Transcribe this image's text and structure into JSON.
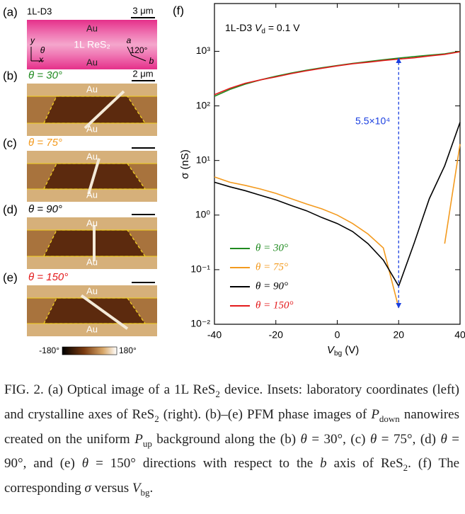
{
  "panels": [
    {
      "label": "(a)",
      "name": "1L-D3",
      "scale": "3 μm",
      "top": "Au",
      "middle": "1L ReS₂",
      "bottom": "Au",
      "lab_axes": [
        "y",
        "θ",
        "x"
      ],
      "crystal_axes": [
        "a",
        "120°",
        "b"
      ]
    },
    {
      "label": "(b)",
      "angle": "θ = 30°",
      "color": "#1f8a1f",
      "scale": "2 μm",
      "top": "Au",
      "bottom": "Au"
    },
    {
      "label": "(c)",
      "angle": "θ = 75°",
      "color": "#f39a1e",
      "top": "Au",
      "bottom": "Au"
    },
    {
      "label": "(d)",
      "angle": "θ = 90°",
      "color": "#000000",
      "top": "Au",
      "bottom": "Au"
    },
    {
      "label": "(e)",
      "angle": "θ = 150°",
      "color": "#e31a1c",
      "top": "Au",
      "bottom": "Au"
    }
  ],
  "colorbar": [
    "-180°",
    "180°"
  ],
  "chart_data": {
    "type": "line",
    "label": "(f)",
    "note": [
      "1L-D3 ",
      "V",
      "d",
      " = 0.1 V"
    ],
    "ylabel": "σ (nS)",
    "xlabel": [
      "V",
      "bg",
      " (V)"
    ],
    "annotation": "5.5×10⁴",
    "annotation_color": "#1a3fe0",
    "x": [
      -40,
      -35,
      -30,
      -25,
      -20,
      -15,
      -10,
      -5,
      0,
      5,
      10,
      15,
      20,
      25,
      30,
      35,
      40
    ],
    "series": [
      {
        "name": "θ = 30°",
        "color": "#1f8a1f",
        "values": [
          150,
          200,
          250,
          300,
          350,
          400,
          450,
          500,
          550,
          600,
          650,
          700,
          750,
          800,
          850,
          900,
          1000
        ]
      },
      {
        "name": "θ = 75°",
        "color": "#f39a1e",
        "values": [
          5,
          4,
          3.5,
          3,
          2.5,
          2,
          1.6,
          1.3,
          1,
          0.7,
          0.45,
          0.25,
          0.02,
          null,
          null,
          0.3,
          20
        ]
      },
      {
        "name": "θ = 90°",
        "color": "#000000",
        "values": [
          4,
          3.3,
          2.8,
          2.3,
          1.9,
          1.5,
          1.2,
          0.9,
          0.7,
          0.5,
          0.3,
          0.15,
          0.05,
          0.3,
          2,
          8,
          50
        ]
      },
      {
        "name": "θ = 150°",
        "color": "#e31a1c",
        "values": [
          160,
          210,
          260,
          300,
          340,
          390,
          440,
          490,
          540,
          590,
          630,
          680,
          720,
          760,
          820,
          880,
          980
        ]
      }
    ],
    "xlim": [
      -40,
      40
    ],
    "xticks": [
      -40,
      -20,
      0,
      20,
      40
    ],
    "ylim": [
      0.01,
      7500
    ],
    "log_y": true,
    "yticks": [
      {
        "value": 0.01,
        "label": "10⁻²"
      },
      {
        "value": 0.1,
        "label": "10⁻¹"
      },
      {
        "value": 1,
        "label": "10⁰"
      },
      {
        "value": 10,
        "label": "10¹"
      },
      {
        "value": 100,
        "label": "10²"
      },
      {
        "value": 1000,
        "label": "10³"
      }
    ],
    "legend": "lower left"
  },
  "caption": [
    "FIG. 2. (a) Optical image of a 1L ReS",
    "2",
    " device. Insets: laboratory coordinates (left) and crystalline axes of ReS",
    "2",
    " (right). (b)–(e) PFM phase images of ",
    "P",
    "down",
    " nanowires created on the uniform ",
    "P",
    "up",
    " background along the (b) ",
    "θ",
    " = 30°, (c) ",
    "θ",
    " = 75°, (d) ",
    "θ",
    " = 90°, and (e) ",
    "θ",
    " = 150° directions with respect to the ",
    "b",
    " axis of ReS",
    "2",
    ". (f) The corresponding ",
    "σ",
    " versus ",
    "V",
    "bg",
    "."
  ]
}
